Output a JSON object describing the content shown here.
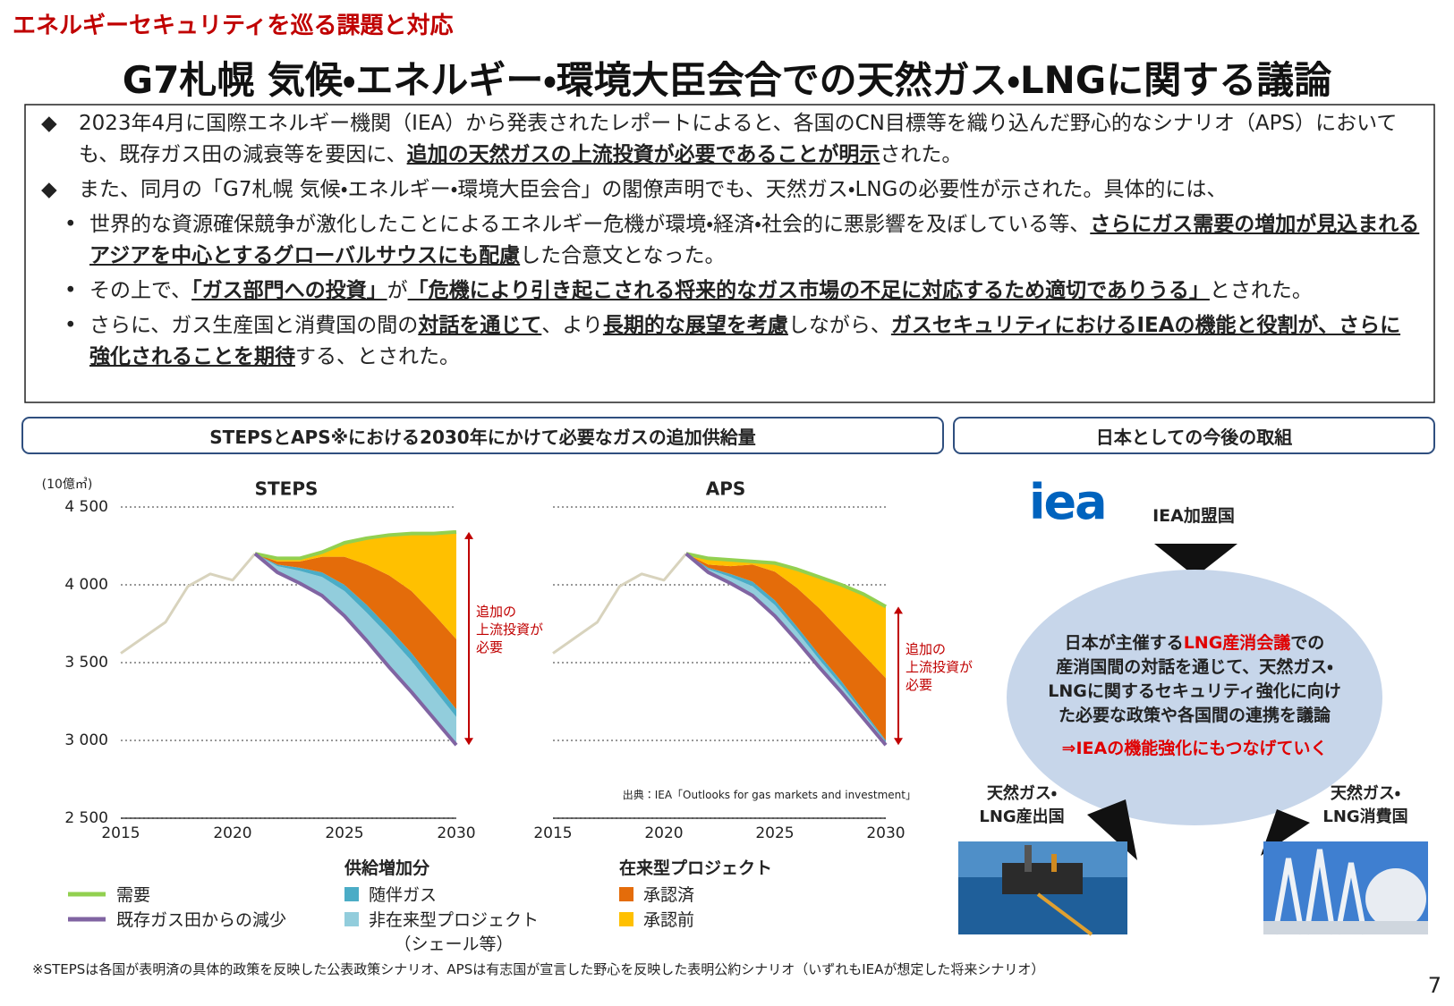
{
  "header": {
    "category": "エネルギーセキュリティを巡る課題と対応",
    "title": "G7札幌 気候・エネルギー・環境大臣会合での天然ガス・LNGに関する議論"
  },
  "summary": {
    "bullets": [
      {
        "marker": "◆",
        "runs": [
          {
            "text": "2023年4月に国際エネルギー機関（IEA）から発表されたレポートによると、各国のCN目標等を織り込んだ野心的なシナリオ（APS）においても、既存ガス田の減衰等を要因に、"
          },
          {
            "text": "追加の天然ガスの上流投資が必要であることが明示",
            "em": true
          },
          {
            "text": "された。"
          }
        ]
      },
      {
        "marker": "◆",
        "runs": [
          {
            "text": "また、同月の「G7札幌 気候・エネルギー・環境大臣会合」の閣僚声明でも、天然ガス・LNGの必要性が示された。具体的には、"
          }
        ]
      },
      {
        "marker": "•",
        "runs": [
          {
            "text": "世界的な資源確保競争が激化したことによるエネルギー危機が環境・経済・社会的に悪影響を及ぼしている等、"
          },
          {
            "text": "さらにガス需要の増加が見込まれるアジアを中心とするグローバルサウスにも配慮",
            "em": true
          },
          {
            "text": "した合意文となった。"
          }
        ]
      },
      {
        "marker": "•",
        "runs": [
          {
            "text": "その上で、"
          },
          {
            "text": "「ガス部門への投資」",
            "em": true
          },
          {
            "text": "が"
          },
          {
            "text": "「危機により引き起こされる将来的なガス市場の不足に対応するため適切でありうる」",
            "em": true
          },
          {
            "text": "とされた。"
          }
        ]
      },
      {
        "marker": "•",
        "runs": [
          {
            "text": "さらに、ガス生産国と消費国の間の"
          },
          {
            "text": "対話を通じて",
            "em": true
          },
          {
            "text": "、より"
          },
          {
            "text": "長期的な展望を考慮",
            "em": true
          },
          {
            "text": "しながら、"
          },
          {
            "text": "ガスセキュリティにおけるIEAの機能と役割が、さらに強化されることを期待",
            "em": true
          },
          {
            "text": "する、とされた。"
          }
        ]
      }
    ]
  },
  "sections": [
    "STEPSとAPS※における2030年にかけて必要なガスの追加供給量",
    "日本としての今後の取組"
  ],
  "chart_data": [
    {
      "type": "line",
      "title": "STEPS",
      "y_label": "(10億㎥)",
      "x": [
        2015,
        2016,
        2017,
        2018,
        2019,
        2020,
        2021,
        2022,
        2023,
        2024,
        2025,
        2026,
        2027,
        2028,
        2029,
        2030
      ],
      "xlim": [
        2015,
        2030
      ],
      "xticks": [
        2015,
        2020,
        2025,
        2030
      ],
      "ylim": [
        2500,
        4500
      ],
      "yticks": [
        {
          "value": 2500,
          "label": "2 500"
        },
        {
          "value": 3000,
          "label": "3 000"
        },
        {
          "value": 3500,
          "label": "3 500"
        },
        {
          "value": 4000,
          "label": "4 000"
        },
        {
          "value": 4500,
          "label": "4 500"
        }
      ],
      "grid": true,
      "annotation": "追加の\n上流投資が\n必要",
      "legend_headings": [
        "供給増加分",
        "在来型プロジェクト"
      ],
      "series": [
        {
          "style": "line",
          "color": "#d8d3bd",
          "values": [
            3560,
            3660,
            3760,
            3990,
            4070,
            4030,
            4200,
            null,
            null,
            null,
            null,
            null,
            null,
            null,
            null,
            null
          ]
        },
        {
          "name": "需要",
          "style": "line",
          "color": "#92d050",
          "values": [
            null,
            null,
            null,
            null,
            null,
            null,
            4200,
            4170,
            4170,
            4210,
            4270,
            4300,
            4320,
            4330,
            4330,
            4340
          ]
        },
        {
          "name": "既存ガス田からの減少",
          "style": "line",
          "stack_base": true,
          "color": "#8064a2",
          "values": [
            null,
            null,
            null,
            null,
            null,
            null,
            4200,
            4080,
            4010,
            3930,
            3800,
            3640,
            3470,
            3310,
            3140,
            2970
          ]
        },
        {
          "name": "非在来型プロジェクト\n（シェール等）",
          "style": "area",
          "color": "#92cddc",
          "values": [
            null,
            null,
            null,
            null,
            null,
            null,
            0,
            40,
            80,
            120,
            160,
            180,
            200,
            200,
            190,
            180
          ]
        },
        {
          "name": "随伴ガス",
          "style": "area",
          "color": "#4bacc6",
          "values": [
            null,
            null,
            null,
            null,
            null,
            null,
            0,
            10,
            20,
            30,
            40,
            50,
            50,
            50,
            50,
            50
          ]
        },
        {
          "name": "承認済",
          "style": "area",
          "color": "#e46c0a",
          "values": [
            null,
            null,
            null,
            null,
            null,
            null,
            0,
            20,
            40,
            100,
            180,
            260,
            340,
            400,
            430,
            450
          ]
        },
        {
          "name": "承認前",
          "style": "area",
          "color": "#ffc000",
          "values": [
            null,
            null,
            null,
            null,
            null,
            null,
            0,
            20,
            20,
            30,
            90,
            170,
            260,
            370,
            520,
            690
          ]
        }
      ]
    },
    {
      "type": "line",
      "title": "APS",
      "source": "出典：IEA「Outlooks for gas markets and investment」",
      "x": [
        2015,
        2016,
        2017,
        2018,
        2019,
        2020,
        2021,
        2022,
        2023,
        2024,
        2025,
        2026,
        2027,
        2028,
        2029,
        2030
      ],
      "xlim": [
        2015,
        2030
      ],
      "xticks": [
        2015,
        2020,
        2025,
        2030
      ],
      "annotation": "追加の\n上流投資が\n必要",
      "series": [
        {
          "style": "line",
          "color": "#d8d3bd",
          "values": [
            3560,
            3660,
            3760,
            3990,
            4070,
            4030,
            4200,
            null,
            null,
            null,
            null,
            null,
            null,
            null,
            null,
            null
          ]
        },
        {
          "style": "line",
          "color": "#92d050",
          "values": [
            null,
            null,
            null,
            null,
            null,
            null,
            4200,
            4170,
            4160,
            4150,
            4140,
            4100,
            4050,
            4000,
            3940,
            3860
          ]
        },
        {
          "style": "line",
          "stack_base": true,
          "color": "#8064a2",
          "values": [
            null,
            null,
            null,
            null,
            null,
            null,
            4200,
            4080,
            4010,
            3930,
            3800,
            3640,
            3470,
            3310,
            3140,
            2970
          ]
        },
        {
          "style": "area",
          "color": "#92cddc",
          "values": [
            null,
            null,
            null,
            null,
            null,
            null,
            0,
            20,
            40,
            60,
            70,
            60,
            50,
            40,
            30,
            20
          ]
        },
        {
          "style": "area",
          "color": "#4bacc6",
          "values": [
            null,
            null,
            null,
            null,
            null,
            null,
            0,
            10,
            20,
            30,
            30,
            30,
            30,
            30,
            20,
            10
          ]
        },
        {
          "style": "area",
          "color": "#e46c0a",
          "values": [
            null,
            null,
            null,
            null,
            null,
            null,
            0,
            20,
            50,
            110,
            185,
            250,
            300,
            320,
            360,
            400
          ]
        },
        {
          "style": "area",
          "color": "#ffc000",
          "values": [
            null,
            null,
            null,
            null,
            null,
            null,
            0,
            40,
            40,
            20,
            55,
            120,
            200,
            300,
            390,
            460
          ]
        }
      ]
    }
  ],
  "iea_panel": {
    "logo": "iea",
    "member_label": "IEA加盟国",
    "message_lines": [
      [
        {
          "text": "日本が主催する"
        },
        {
          "text": "LNG産消会議",
          "red": true
        },
        {
          "text": "での"
        }
      ],
      [
        {
          "text": "産消国間の対話を通じて、天然ガス・"
        }
      ],
      [
        {
          "text": "LNGに関するセキュリティ強化に向け"
        }
      ],
      [
        {
          "text": "た必要な政策や各国間の連携を議論"
        }
      ],
      [
        {
          "text": "⇒IEAの機能強化にもつなげていく",
          "red": true
        }
      ]
    ],
    "producer": "天然ガス・\nLNG産出国",
    "consumer": "天然ガス・\nLNG消費国"
  },
  "footnote": "※STEPSは各国が表明済の具体的政策を反映した公表政策シナリオ、APSは有志国が宣言した野心を反映した表明公約シナリオ（いずれもIEAが想定した将来シナリオ）",
  "page_number": "7"
}
